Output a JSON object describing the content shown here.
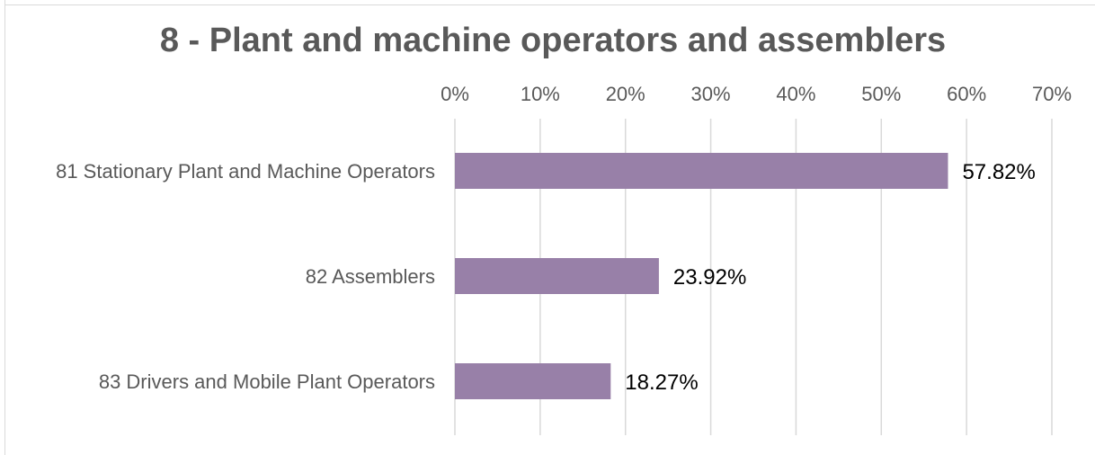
{
  "chart_data": {
    "type": "bar",
    "orientation": "horizontal",
    "title": "8 - Plant and machine operators and assemblers",
    "xlabel": "",
    "ylabel": "",
    "xlim": [
      0,
      70
    ],
    "x_ticks": [
      0,
      10,
      20,
      30,
      40,
      50,
      60,
      70
    ],
    "x_tick_labels": [
      "0%",
      "10%",
      "20%",
      "30%",
      "40%",
      "50%",
      "60%",
      "70%"
    ],
    "x_axis_position": "top",
    "grid": true,
    "legend": "none",
    "categories": [
      "81 Stationary Plant and Machine Operators",
      "82 Assemblers",
      "83 Drivers and Mobile Plant Operators"
    ],
    "values": [
      57.82,
      23.92,
      18.27
    ],
    "data_labels": [
      "57.82%",
      "23.92%",
      "18.27%"
    ],
    "bar_color": "#9880a8",
    "grid_color": "#d9d9d9",
    "text_color": "#595959"
  }
}
